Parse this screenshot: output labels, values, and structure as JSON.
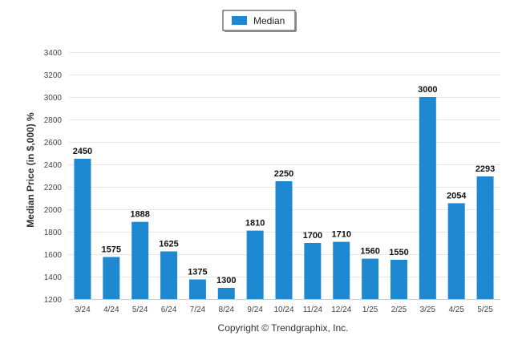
{
  "legend": {
    "label": "Median"
  },
  "copyright": "Copyright © Trendgraphix, Inc.",
  "colors": {
    "bar": "#1e88d0",
    "legend_border": "#333333"
  },
  "chart_data": {
    "type": "bar",
    "title": "",
    "xlabel": "",
    "ylabel": "Median Price (in $,000) %",
    "categories": [
      "3/24",
      "4/24",
      "5/24",
      "6/24",
      "7/24",
      "8/24",
      "9/24",
      "10/24",
      "11/24",
      "12/24",
      "1/25",
      "2/25",
      "3/25",
      "4/25",
      "5/25"
    ],
    "series": [
      {
        "name": "Median",
        "values": [
          2450,
          1575,
          1888,
          1625,
          1375,
          1300,
          1810,
          2250,
          1700,
          1710,
          1560,
          1550,
          3000,
          2054,
          2293
        ]
      }
    ],
    "ylim": [
      1200,
      3400
    ],
    "yticks": [
      1200,
      1400,
      1600,
      1800,
      2000,
      2200,
      2400,
      2600,
      2800,
      3000,
      3200,
      3400
    ],
    "grid": true,
    "legend_position": "top-center",
    "data_labels": true
  }
}
